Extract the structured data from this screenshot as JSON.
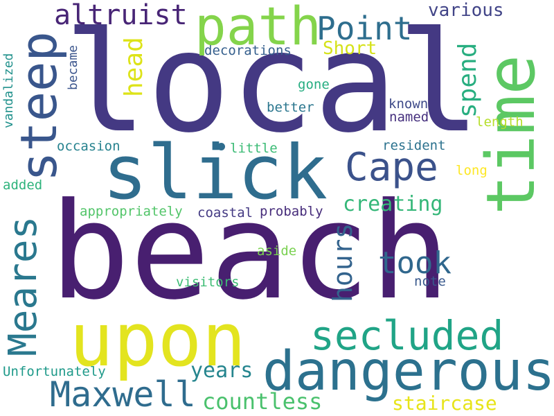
{
  "words": [
    {
      "text": "beach",
      "color": "#481f70",
      "vertical": false
    },
    {
      "text": "local",
      "color": "#443983",
      "vertical": false
    },
    {
      "text": "upon",
      "color": "#e3e41f",
      "vertical": false
    },
    {
      "text": "dangerous",
      "color": "#2c718e",
      "vertical": false
    },
    {
      "text": "slick",
      "color": "#2f6d8e",
      "vertical": false
    },
    {
      "text": "time",
      "color": "#5cc863",
      "vertical": true
    },
    {
      "text": "path",
      "color": "#84d44b",
      "vertical": false
    },
    {
      "text": "steep",
      "color": "#39568c",
      "vertical": true
    },
    {
      "text": "Meares",
      "color": "#2a788e",
      "vertical": true
    },
    {
      "text": "secluded",
      "color": "#20a486",
      "vertical": false
    },
    {
      "text": "Cape",
      "color": "#3b528b",
      "vertical": false
    },
    {
      "text": "Maxwell",
      "color": "#2f6c8e",
      "vertical": false
    },
    {
      "text": "altruist",
      "color": "#482576",
      "vertical": false
    },
    {
      "text": "Point",
      "color": "#2e6e8e",
      "vertical": false
    },
    {
      "text": "took",
      "color": "#30678d",
      "vertical": false
    },
    {
      "text": "hours",
      "color": "#33638d",
      "vertical": true
    },
    {
      "text": "head",
      "color": "#dde318",
      "vertical": true
    },
    {
      "text": "spend",
      "color": "#28ae80",
      "vertical": true
    },
    {
      "text": "creating",
      "color": "#35b779",
      "vertical": false
    },
    {
      "text": "countless",
      "color": "#4ac16d",
      "vertical": false
    },
    {
      "text": "years",
      "color": "#25858e",
      "vertical": false
    },
    {
      "text": "staircase",
      "color": "#e7e419",
      "vertical": false
    },
    {
      "text": "various",
      "color": "#414487",
      "vertical": false
    },
    {
      "text": "Short",
      "color": "#d5e21a",
      "vertical": false
    },
    {
      "text": "decorations",
      "color": "#355f8d",
      "vertical": false
    },
    {
      "text": "vandalized",
      "color": "#21918c",
      "vertical": true
    },
    {
      "text": "became",
      "color": "#3a548c",
      "vertical": true
    },
    {
      "text": "gone",
      "color": "#26ad81",
      "vertical": false
    },
    {
      "text": "better",
      "color": "#2a768e",
      "vertical": false
    },
    {
      "text": "known",
      "color": "#3e4a89",
      "vertical": false
    },
    {
      "text": "named",
      "color": "#46307e",
      "vertical": false
    },
    {
      "text": "length",
      "color": "#b5de2b",
      "vertical": false
    },
    {
      "text": "occasion",
      "color": "#26828e",
      "vertical": false
    },
    {
      "text": "little",
      "color": "#3bbb75",
      "vertical": false
    },
    {
      "text": "resident",
      "color": "#2c728e",
      "vertical": false
    },
    {
      "text": "long",
      "color": "#fde725",
      "vertical": false
    },
    {
      "text": "added",
      "color": "#2eb37c",
      "vertical": false
    },
    {
      "text": "appropriately",
      "color": "#52c569",
      "vertical": false
    },
    {
      "text": "coastal",
      "color": "#443a83",
      "vertical": false
    },
    {
      "text": "probably",
      "color": "#472d7b",
      "vertical": false
    },
    {
      "text": "aside",
      "color": "#7ad151",
      "vertical": false
    },
    {
      "text": "visitors",
      "color": "#3dbc74",
      "vertical": false
    },
    {
      "text": "note",
      "color": "#38588c",
      "vertical": false
    },
    {
      "text": "Unfortunately",
      "color": "#1f9a8a",
      "vertical": false
    }
  ]
}
